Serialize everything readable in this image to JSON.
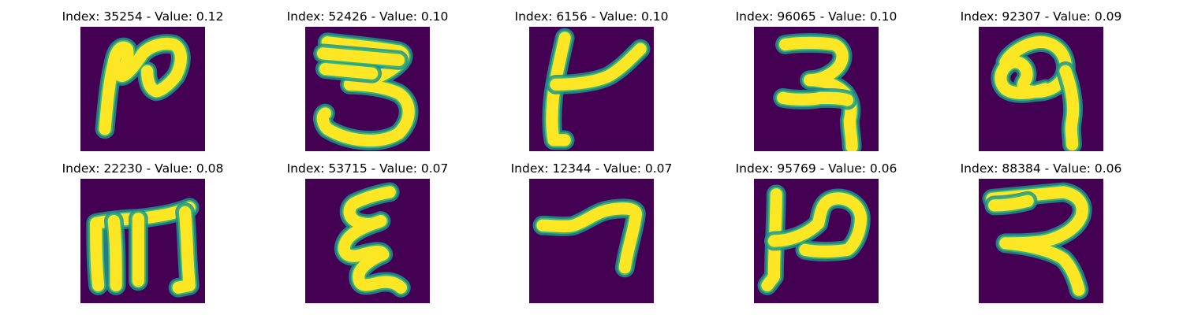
{
  "colors": {
    "background": "#440154",
    "stroke_core": "#fde725",
    "stroke_edge": "#35b779",
    "stroke_halo": "#21918c"
  },
  "samples": [
    {
      "title": "Index: 35254 - Value: 0.12"
    },
    {
      "title": "Index: 52426 - Value: 0.10"
    },
    {
      "title": "Index: 6156 - Value: 0.10"
    },
    {
      "title": "Index: 96065 - Value: 0.10"
    },
    {
      "title": "Index: 92307 - Value: 0.09"
    },
    {
      "title": "Index: 22230 - Value: 0.08"
    },
    {
      "title": "Index: 53715 - Value: 0.07"
    },
    {
      "title": "Index: 12344 - Value: 0.07"
    },
    {
      "title": "Index: 95769 - Value: 0.06"
    },
    {
      "title": "Index: 88384 - Value: 0.06"
    }
  ]
}
